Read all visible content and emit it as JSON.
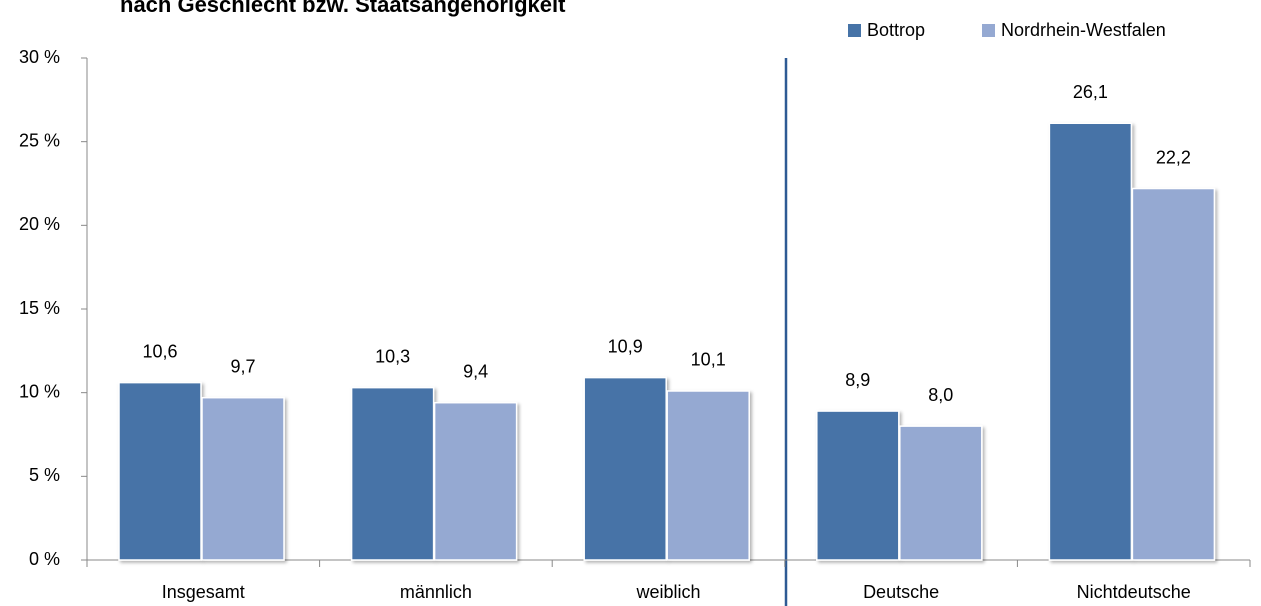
{
  "chart_data": {
    "type": "bar",
    "title": "nach Geschlecht bzw. Staatsangehörigkeit",
    "categories": [
      "Insgesamt",
      "männlich",
      "weiblich",
      "Deutsche",
      "Nichtdeutsche"
    ],
    "series": [
      {
        "name": "Bottrop",
        "color": "#4673a7",
        "values": [
          10.6,
          10.3,
          10.9,
          8.9,
          26.1
        ],
        "value_labels": [
          "10,6",
          "10,3",
          "10,9",
          "8,9",
          "26,1"
        ]
      },
      {
        "name": "Nordrhein-Westfalen",
        "color": "#95a9d2",
        "values": [
          9.7,
          9.4,
          10.1,
          8.0,
          22.2
        ],
        "value_labels": [
          "9,7",
          "9,4",
          "10,1",
          "8,0",
          "22,2"
        ]
      }
    ],
    "ylim": [
      0,
      30
    ],
    "yticks": [
      {
        "value": 0,
        "label": "0 %"
      },
      {
        "value": 5,
        "label": "5 %"
      },
      {
        "value": 10,
        "label": "10 %"
      },
      {
        "value": 15,
        "label": "15 %"
      },
      {
        "value": 20,
        "label": "20 %"
      },
      {
        "value": 25,
        "label": "25 %"
      },
      {
        "value": 30,
        "label": "30 %"
      }
    ],
    "legend": "top-right"
  }
}
